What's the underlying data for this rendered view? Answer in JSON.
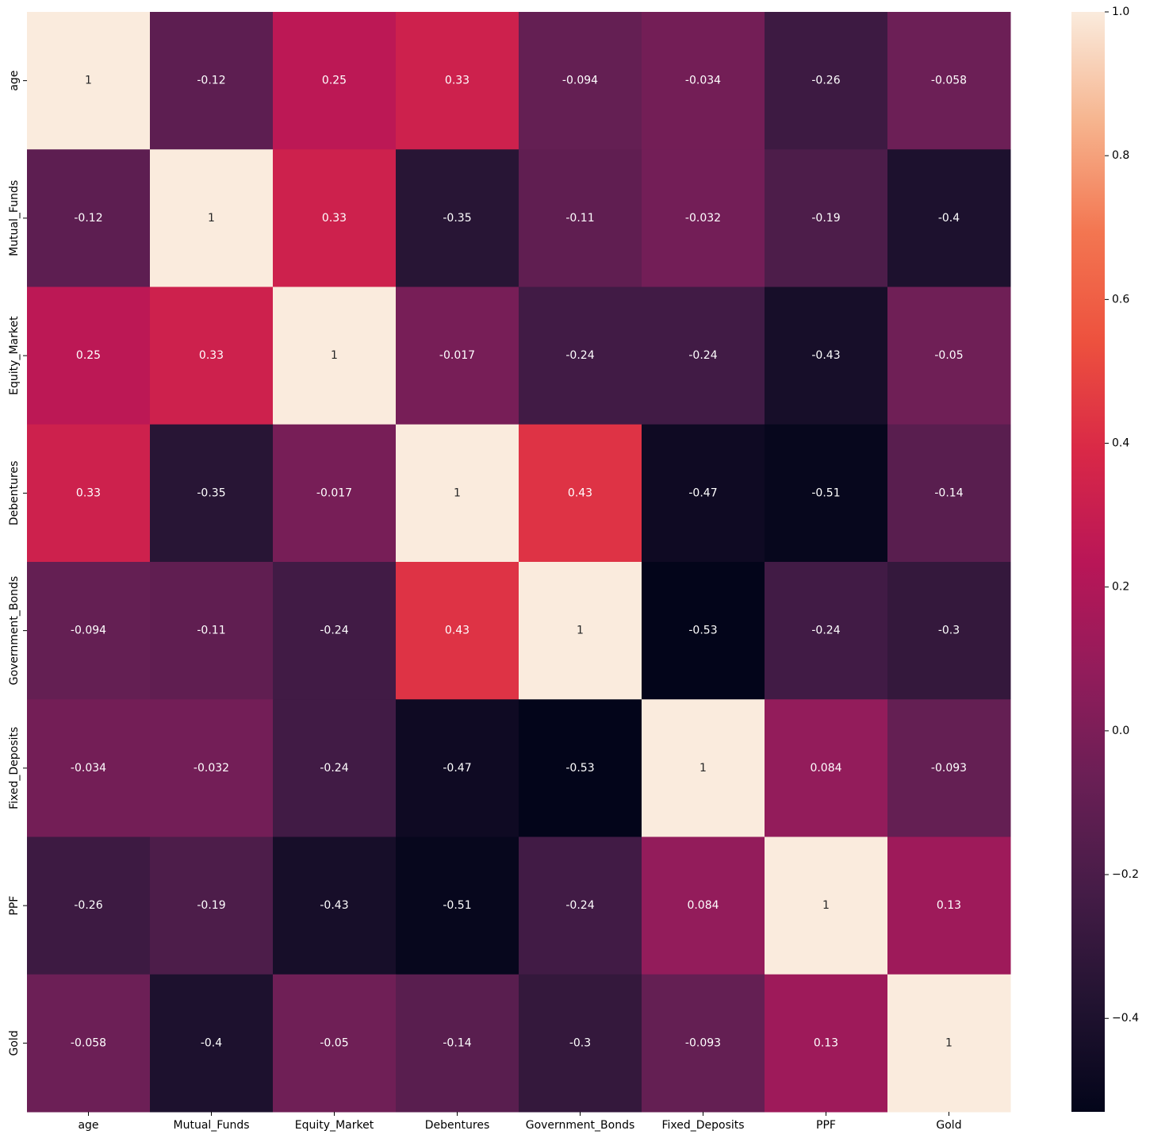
{
  "chart_data": {
    "type": "heatmap",
    "x_categories": [
      "age",
      "Mutual_Funds",
      "Equity_Market",
      "Debentures",
      "Government_Bonds",
      "Fixed_Deposits",
      "PPF",
      "Gold"
    ],
    "y_categories": [
      "age",
      "Mutual_Funds",
      "Equity_Market",
      "Debentures",
      "Government_Bonds",
      "Fixed_Deposits",
      "PPF",
      "Gold"
    ],
    "values": [
      [
        1,
        -0.12,
        0.25,
        0.33,
        -0.094,
        -0.034,
        -0.26,
        -0.058
      ],
      [
        -0.12,
        1,
        0.33,
        -0.35,
        -0.11,
        -0.032,
        -0.19,
        -0.4
      ],
      [
        0.25,
        0.33,
        1,
        -0.017,
        -0.24,
        -0.24,
        -0.43,
        -0.05
      ],
      [
        0.33,
        -0.35,
        -0.017,
        1,
        0.43,
        -0.47,
        -0.51,
        -0.14
      ],
      [
        -0.094,
        -0.11,
        -0.24,
        0.43,
        1,
        -0.53,
        -0.24,
        -0.3
      ],
      [
        -0.034,
        -0.032,
        -0.24,
        -0.47,
        -0.53,
        1,
        0.084,
        -0.093
      ],
      [
        -0.26,
        -0.19,
        -0.43,
        -0.51,
        -0.24,
        0.084,
        1,
        0.13
      ],
      [
        -0.058,
        -0.4,
        -0.05,
        -0.14,
        -0.3,
        -0.093,
        0.13,
        1
      ]
    ],
    "zlim": [
      -0.53,
      1
    ],
    "zticks": [
      {
        "value": -0.4,
        "label": "−0.4"
      },
      {
        "value": -0.2,
        "label": "−0.2"
      },
      {
        "value": 0,
        "label": "0.0"
      },
      0.2,
      0.4,
      0.6,
      0.8,
      {
        "value": 1,
        "label": "1.0"
      }
    ],
    "colormap": [
      "#03051a",
      "#221331",
      "#451c47",
      "#691f55",
      "#921c5b",
      "#b91657",
      "#d92847",
      "#ed513e",
      "#f37651",
      "#f6b48e",
      "#faebdd"
    ]
  }
}
